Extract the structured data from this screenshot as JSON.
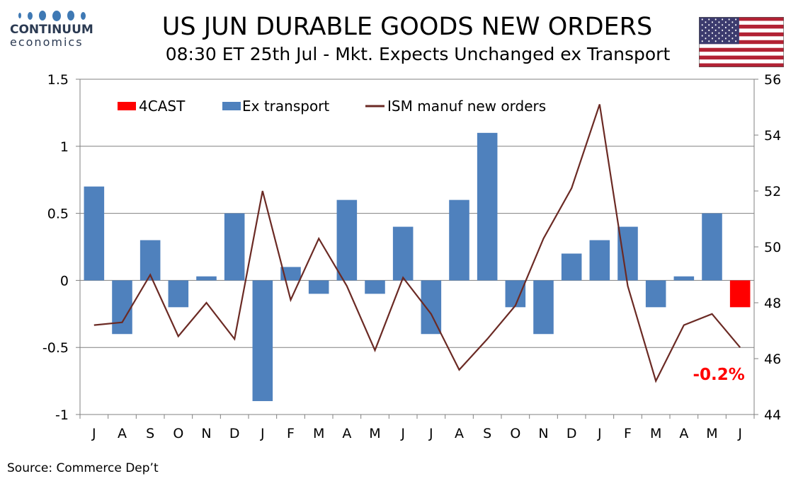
{
  "header": {
    "logo_name": "CONTINUUM",
    "logo_sub": "economics",
    "title": "US JUN DURABLE GOODS NEW ORDERS",
    "subtitle": "08:30 ET 25th Jul - Mkt. Expects Unchanged ex Transport"
  },
  "footer": {
    "source": "Source: Commerce Dep’t"
  },
  "colors": {
    "forecast": "#ff0000",
    "ex_transport": "#4f81bd",
    "ism": "#6b2a24",
    "grid": "#808080",
    "annotation": "#ff0000"
  },
  "icons": {
    "flag": "us-flag-icon",
    "logo": "continuum-logo-icon"
  },
  "chart_data": {
    "type": "bar",
    "categories": [
      "J",
      "A",
      "S",
      "O",
      "N",
      "D",
      "J",
      "F",
      "M",
      "A",
      "M",
      "J",
      "J",
      "A",
      "S",
      "O",
      "N",
      "D",
      "J",
      "F",
      "M",
      "A",
      "M",
      "J"
    ],
    "series": [
      {
        "name": "4CAST",
        "axis": "left",
        "type": "bar",
        "values": [
          null,
          null,
          null,
          null,
          null,
          null,
          null,
          null,
          null,
          null,
          null,
          null,
          null,
          null,
          null,
          null,
          null,
          null,
          null,
          null,
          null,
          null,
          null,
          -0.2
        ]
      },
      {
        "name": "Ex transport",
        "axis": "left",
        "type": "bar",
        "values": [
          0.7,
          -0.4,
          0.3,
          -0.2,
          0.03,
          0.5,
          -0.9,
          0.1,
          -0.1,
          0.6,
          -0.1,
          0.4,
          -0.4,
          0.6,
          1.1,
          -0.2,
          -0.4,
          0.2,
          0.3,
          0.4,
          -0.2,
          0.03,
          0.5,
          null
        ]
      },
      {
        "name": "ISM manuf new orders",
        "axis": "right",
        "type": "line",
        "values": [
          47.2,
          47.3,
          49.0,
          46.8,
          48.0,
          46.7,
          52.0,
          48.1,
          50.3,
          48.6,
          46.3,
          48.9,
          47.6,
          45.6,
          46.7,
          47.9,
          50.3,
          52.1,
          55.1,
          48.6,
          45.2,
          47.2,
          47.6,
          46.4
        ]
      }
    ],
    "y_left": {
      "min": -1,
      "max": 1.5,
      "ticks": [
        "-1",
        "-0.5",
        "0",
        "0.5",
        "1",
        "1.5"
      ],
      "tick_values": [
        -1,
        -0.5,
        0,
        0.5,
        1,
        1.5
      ]
    },
    "y_right": {
      "min": 44,
      "max": 56,
      "ticks": [
        "44",
        "46",
        "48",
        "50",
        "52",
        "54",
        "56"
      ],
      "tick_values": [
        44,
        46,
        48,
        50,
        52,
        54,
        56
      ]
    },
    "annotation": {
      "text": "-0.2%",
      "category_index": 23
    },
    "grid": "horizontal",
    "legend_position": "top"
  }
}
